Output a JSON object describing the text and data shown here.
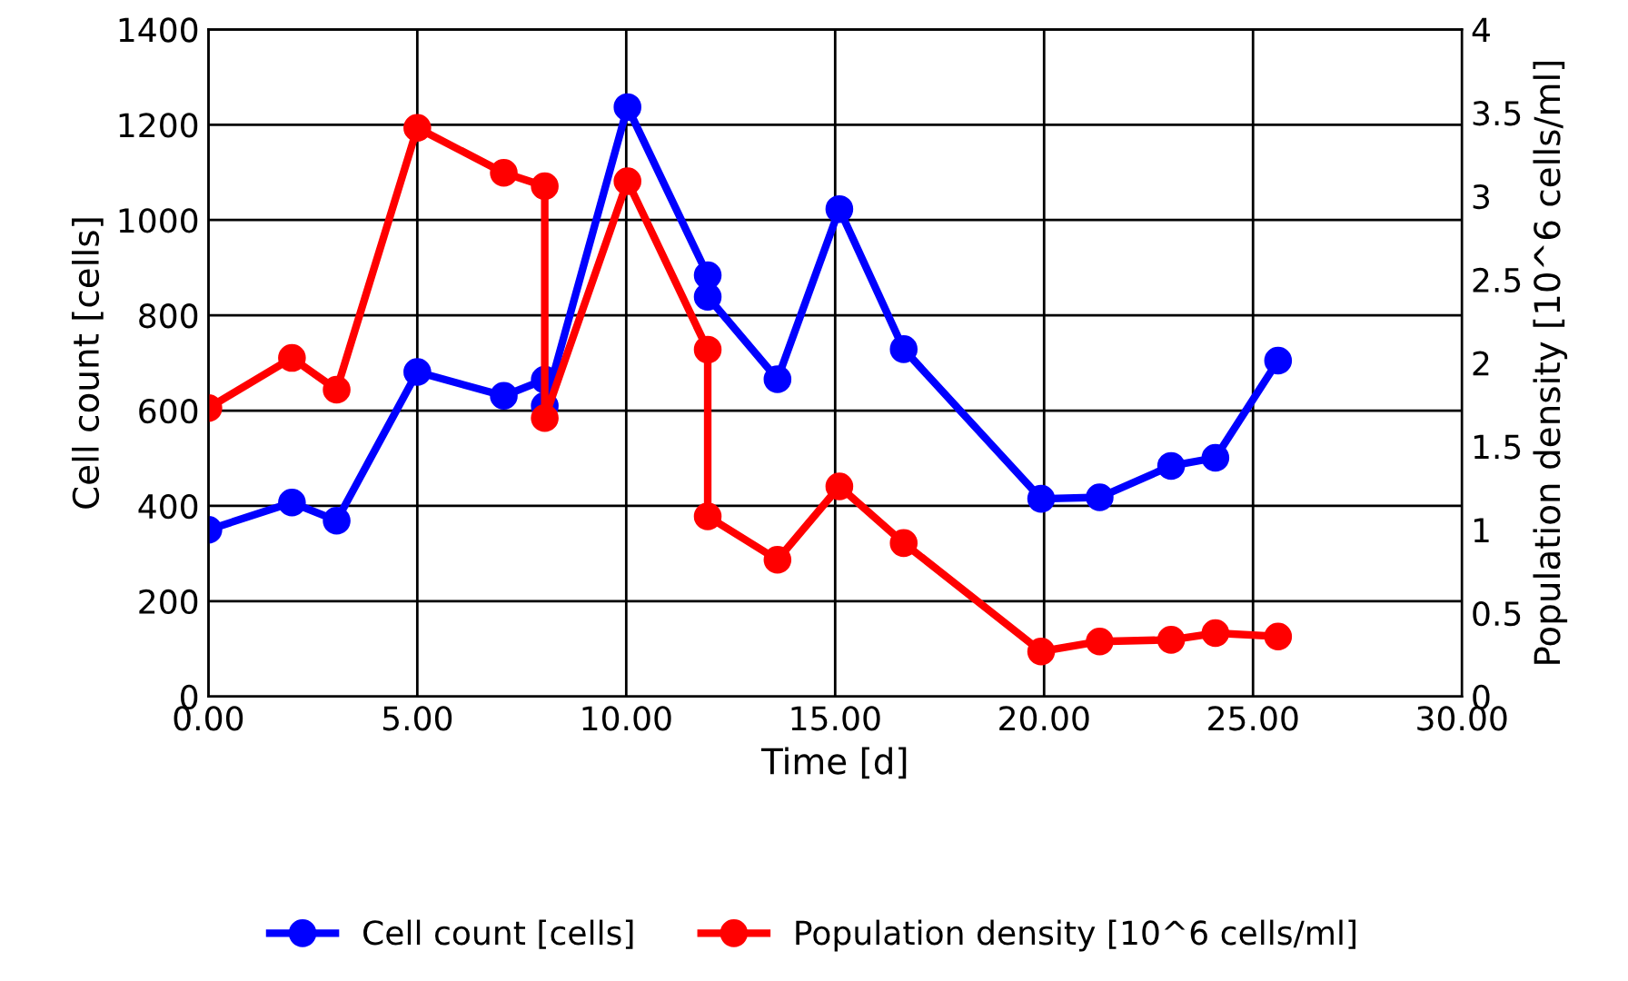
{
  "chart_data": {
    "type": "line",
    "xlabel": "Time [d]",
    "ylabel": "Cell count [cells]",
    "y2label": "Population density [10^6 cells/ml]",
    "x": [
      0,
      2.0,
      3.07,
      5.0,
      7.07,
      8.05,
      8.05,
      10.03,
      11.95,
      11.95,
      13.62,
      15.1,
      16.64,
      19.93,
      21.33,
      23.04,
      24.1,
      25.6
    ],
    "series": [
      {
        "name": "Cell count [cells]",
        "color": "#0000ff",
        "values": [
          350,
          407,
          369,
          681,
          631,
          665,
          610,
          1237,
          884,
          839,
          666,
          1023,
          729,
          415,
          418,
          484,
          501,
          705
        ]
      },
      {
        "name": "Population density [10^6 cells/ml]",
        "color": "#ff0000",
        "axis": "y2",
        "values": [
          1.73,
          2.03,
          1.84,
          3.41,
          3.14,
          3.06,
          1.67,
          3.09,
          2.08,
          1.08,
          0.82,
          1.26,
          0.92,
          0.27,
          0.33,
          0.34,
          0.38,
          0.36
        ]
      }
    ],
    "xlim": [
      0,
      30
    ],
    "xticks": [
      {
        "value": 0,
        "label": "0.00"
      },
      {
        "value": 5,
        "label": "5.00"
      },
      {
        "value": 10,
        "label": "10.00"
      },
      {
        "value": 15,
        "label": "15.00"
      },
      {
        "value": 20,
        "label": "20.00"
      },
      {
        "value": 25,
        "label": "25.00"
      },
      {
        "value": 30,
        "label": "30.00"
      }
    ],
    "ylim": [
      0,
      1400
    ],
    "yticks": [
      0,
      200,
      400,
      600,
      800,
      1000,
      1200,
      1400
    ],
    "y2lim": [
      0,
      4
    ],
    "y2ticks": [
      0,
      0.5,
      1,
      1.5,
      2,
      2.5,
      3,
      3.5,
      4
    ],
    "grid": true,
    "legend": "bottom",
    "marker": "circle",
    "line_style": "solid"
  }
}
